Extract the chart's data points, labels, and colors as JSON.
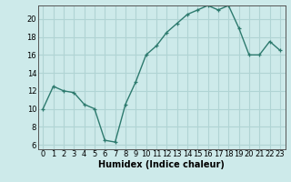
{
  "x": [
    0,
    1,
    2,
    3,
    4,
    5,
    6,
    7,
    8,
    9,
    10,
    11,
    12,
    13,
    14,
    15,
    16,
    17,
    18,
    19,
    20,
    21,
    22,
    23
  ],
  "y": [
    10,
    12.5,
    12,
    11.8,
    10.5,
    10,
    6.5,
    6.3,
    10.5,
    13,
    16,
    17,
    18.5,
    19.5,
    20.5,
    21,
    21.5,
    21,
    21.5,
    19,
    16,
    16,
    17.5,
    16.5
  ],
  "line_color": "#2d7a6e",
  "marker": "+",
  "bg_color": "#cdeaea",
  "grid_color": "#b0d4d4",
  "xlabel": "Humidex (Indice chaleur)",
  "xlim": [
    -0.5,
    23.5
  ],
  "ylim": [
    5.5,
    21.5
  ],
  "yticks": [
    6,
    8,
    10,
    12,
    14,
    16,
    18,
    20
  ],
  "xticks": [
    0,
    1,
    2,
    3,
    4,
    5,
    6,
    7,
    8,
    9,
    10,
    11,
    12,
    13,
    14,
    15,
    16,
    17,
    18,
    19,
    20,
    21,
    22,
    23
  ],
  "xlabel_fontsize": 7,
  "tick_fontsize": 6,
  "line_width": 1.0,
  "marker_size": 3.5,
  "marker_edge_width": 0.9
}
